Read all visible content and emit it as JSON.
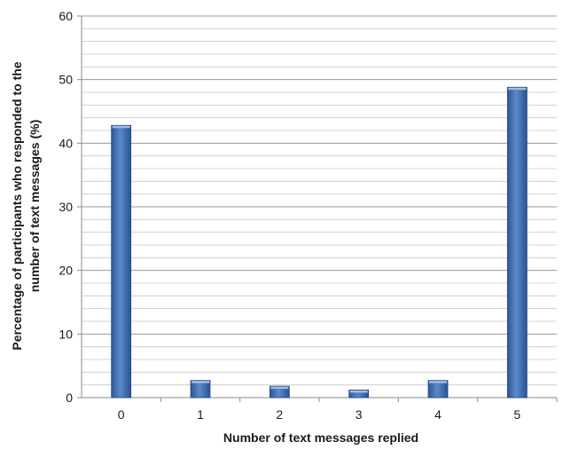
{
  "chart_data": {
    "type": "bar",
    "categories": [
      "0",
      "1",
      "2",
      "3",
      "4",
      "5"
    ],
    "values": [
      42.8,
      2.7,
      1.8,
      1.2,
      2.7,
      48.8
    ],
    "xlabel": "Number of text messages replied",
    "ylabel_lines": [
      "Percentage of participants who responded  to the",
      "number of text messages  (%)"
    ],
    "ylim": [
      0,
      60
    ],
    "yticks": [
      "0",
      "10",
      "20",
      "30",
      "40",
      "50",
      "60"
    ],
    "grid": true,
    "bar_color": "#3f6fb0"
  }
}
